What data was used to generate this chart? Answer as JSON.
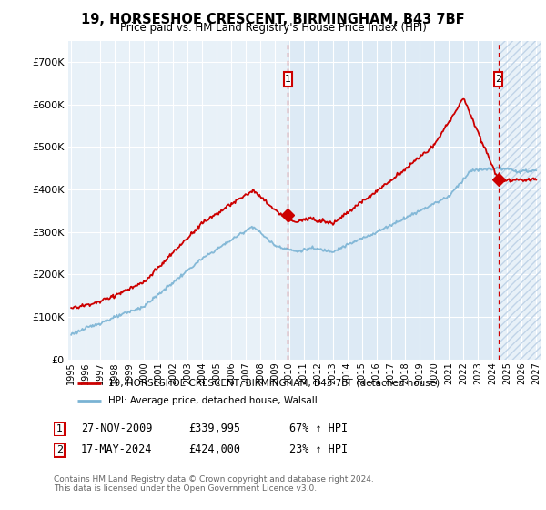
{
  "title": "19, HORSESHOE CRESCENT, BIRMINGHAM, B43 7BF",
  "subtitle": "Price paid vs. HM Land Registry's House Price Index (HPI)",
  "legend_line1": "19, HORSESHOE CRESCENT, BIRMINGHAM, B43 7BF (detached house)",
  "legend_line2": "HPI: Average price, detached house, Walsall",
  "annotation1_date": "27-NOV-2009",
  "annotation1_price": 339995,
  "annotation1_price_str": "£339,995",
  "annotation1_text": "67% ↑ HPI",
  "annotation2_date": "17-MAY-2024",
  "annotation2_price": 424000,
  "annotation2_price_str": "£424,000",
  "annotation2_text": "23% ↑ HPI",
  "footer": "Contains HM Land Registry data © Crown copyright and database right 2024.\nThis data is licensed under the Open Government Licence v3.0.",
  "hpi_color": "#7ab3d4",
  "price_color": "#cc0000",
  "ylim": [
    0,
    750000
  ],
  "yticks": [
    0,
    100000,
    200000,
    300000,
    400000,
    500000,
    600000,
    700000
  ],
  "bg_light": "#ddeaf5",
  "bg_lighter": "#e8f1f8",
  "grid_color": "#ffffff",
  "hatch_color": "#c0d4e8",
  "xlim_left": 1995,
  "xlim_right": 2027,
  "x_sale1": 2009.917,
  "x_sale2": 2024.417,
  "y_sale1": 339995,
  "y_sale2": 424000,
  "y_peak2": 618000
}
